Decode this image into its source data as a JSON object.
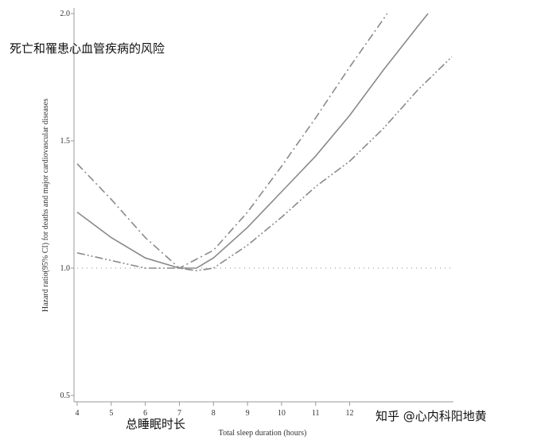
{
  "chart_data": {
    "type": "line",
    "annotations": [
      "死亡和罹患心血管疾病的风险",
      "总睡眠时长",
      "知乎 @心内科阳地黄"
    ],
    "x_label": "Total sleep duration (hours)",
    "y_label": "Hazard ratio(95% CI) for deaths and major cardiovascular diseases",
    "xlim": [
      4,
      15
    ],
    "xticks": [
      4,
      5,
      6,
      7,
      8,
      9,
      10,
      11,
      12
    ],
    "ylim": [
      0.5,
      2.0
    ],
    "yticks": [
      {
        "value": 0.5,
        "label": "0.5"
      },
      {
        "value": 1.0,
        "label": "1.0"
      },
      {
        "value": 1.5,
        "label": "1.5"
      },
      {
        "value": 2.0,
        "label": "2.0"
      }
    ],
    "reference_line": 1.0,
    "series": [
      {
        "color": "#8a8a8a",
        "dash": "solid",
        "x": [
          4,
          5,
          6,
          7,
          7.5,
          8,
          9,
          10,
          11,
          12,
          13,
          14,
          14.3
        ],
        "values": [
          1.22,
          1.12,
          1.04,
          1.0,
          1.0,
          1.04,
          1.16,
          1.3,
          1.44,
          1.6,
          1.78,
          1.95,
          2.0
        ]
      },
      {
        "color": "#8a8a8a",
        "dash": "dashdot",
        "x": [
          4,
          5,
          6,
          7,
          8,
          9,
          10,
          11,
          12,
          13,
          13.1
        ],
        "values": [
          1.41,
          1.27,
          1.12,
          1.0,
          1.07,
          1.22,
          1.4,
          1.59,
          1.79,
          1.98,
          2.0
        ]
      },
      {
        "color": "#8a8a8a",
        "dash": "dashdotdot",
        "x": [
          4,
          5,
          6,
          7,
          7.5,
          8,
          9,
          10,
          11,
          12,
          13,
          14,
          15
        ],
        "values": [
          1.06,
          1.03,
          1.0,
          1.0,
          0.99,
          1.0,
          1.09,
          1.2,
          1.32,
          1.42,
          1.55,
          1.7,
          1.83
        ]
      }
    ]
  }
}
